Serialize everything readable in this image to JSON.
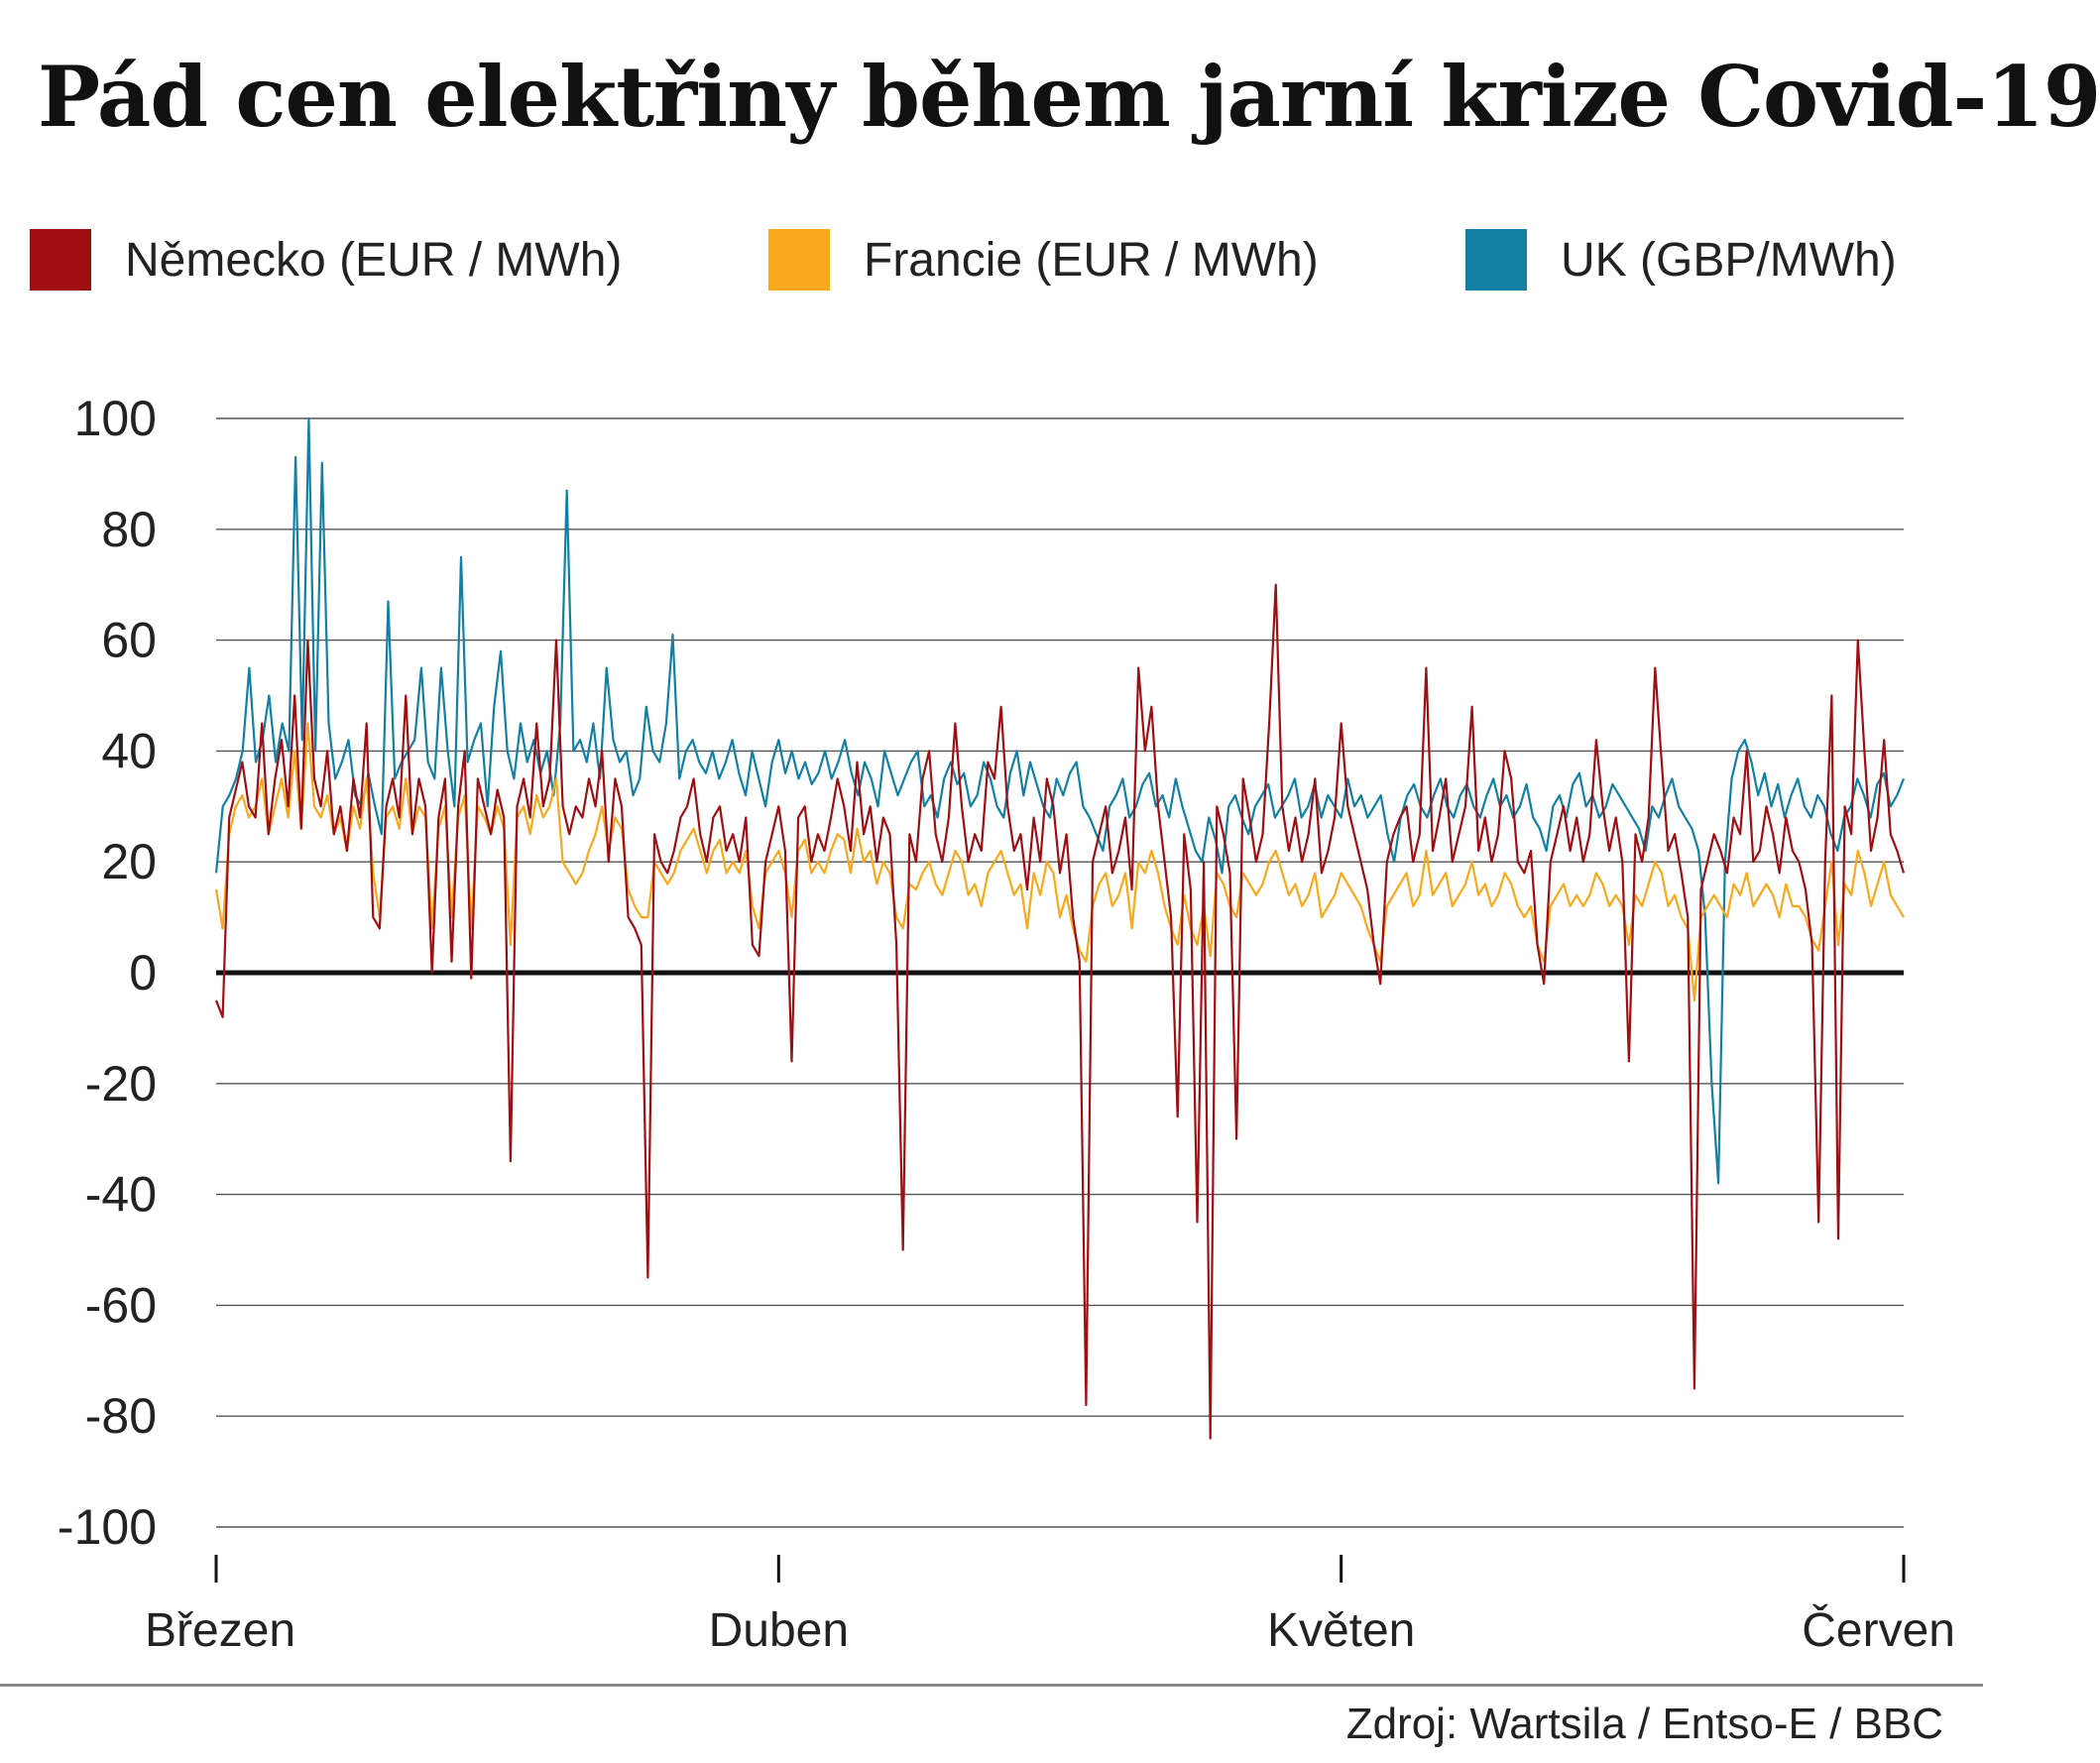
{
  "title": "Pád cen elektřiny během jarní krize Covid-19",
  "legend": [
    {
      "label": "Německo (EUR / MWh)",
      "color": "#A00E12"
    },
    {
      "label": "Francie (EUR / MWh)",
      "color": "#F9A81B"
    },
    {
      "label": "UK (GBP/MWh)",
      "color": "#1280A5"
    }
  ],
  "source": "Zdroj: Wartsila / Entso-E / BBC",
  "chart_data": {
    "type": "line",
    "ylim": [
      -100,
      100
    ],
    "yticks": [
      "100",
      "80",
      "60",
      "40",
      "20",
      "0",
      "-20",
      "-40",
      "-60",
      "-80",
      "-100"
    ],
    "xticks": [
      "Březen",
      "Duben",
      "Květen",
      "Červen"
    ],
    "xlim": [
      "1.3.2020",
      "1.6.2020"
    ],
    "grid": true,
    "legend_position": "top",
    "series": [
      {
        "name": "Německo (EUR / MWh)",
        "color": "#A00E12",
        "values": [
          -5,
          -8,
          28,
          33,
          38,
          30,
          28,
          45,
          25,
          35,
          42,
          30,
          50,
          26,
          60,
          35,
          30,
          40,
          25,
          30,
          22,
          35,
          28,
          45,
          10,
          8,
          30,
          35,
          28,
          50,
          25,
          35,
          30,
          0,
          28,
          35,
          2,
          30,
          40,
          -1,
          35,
          30,
          25,
          33,
          28,
          -34,
          30,
          35,
          28,
          45,
          30,
          35,
          60,
          30,
          25,
          30,
          28,
          35,
          30,
          40,
          20,
          35,
          30,
          10,
          8,
          5,
          -55,
          25,
          20,
          18,
          22,
          28,
          30,
          35,
          25,
          20,
          28,
          30,
          22,
          25,
          20,
          28,
          5,
          3,
          20,
          25,
          30,
          22,
          -16,
          28,
          30,
          20,
          25,
          22,
          28,
          35,
          30,
          22,
          38,
          25,
          30,
          20,
          28,
          25,
          5,
          -50,
          25,
          20,
          35,
          40,
          25,
          20,
          28,
          45,
          30,
          20,
          25,
          22,
          38,
          35,
          48,
          30,
          22,
          25,
          15,
          28,
          20,
          35,
          30,
          18,
          25,
          10,
          2,
          -78,
          20,
          25,
          30,
          18,
          22,
          28,
          15,
          55,
          40,
          48,
          30,
          20,
          10,
          -26,
          25,
          15,
          -45,
          20,
          -84,
          30,
          25,
          18,
          -30,
          35,
          28,
          20,
          25,
          45,
          70,
          30,
          22,
          28,
          20,
          25,
          35,
          18,
          22,
          28,
          45,
          30,
          25,
          20,
          15,
          5,
          -2,
          20,
          25,
          28,
          30,
          20,
          25,
          55,
          22,
          28,
          35,
          20,
          25,
          30,
          48,
          22,
          28,
          20,
          25,
          40,
          35,
          20,
          18,
          22,
          5,
          -2,
          20,
          25,
          30,
          22,
          28,
          20,
          25,
          42,
          30,
          22,
          28,
          20,
          -16,
          25,
          20,
          28,
          55,
          38,
          22,
          25,
          18,
          10,
          -75,
          15,
          20,
          25,
          22,
          18,
          28,
          25,
          40,
          20,
          22,
          30,
          25,
          18,
          28,
          22,
          20,
          15,
          5,
          -45,
          20,
          50,
          -48,
          30,
          25,
          60,
          40,
          22,
          28,
          42,
          25,
          22,
          18
        ]
      },
      {
        "name": "Francie (EUR / MWh)",
        "color": "#F9A81B",
        "values": [
          15,
          8,
          25,
          30,
          32,
          28,
          30,
          35,
          25,
          30,
          35,
          28,
          40,
          26,
          45,
          30,
          28,
          32,
          25,
          28,
          22,
          30,
          26,
          35,
          18,
          10,
          28,
          30,
          26,
          35,
          25,
          30,
          28,
          8,
          26,
          30,
          10,
          28,
          32,
          8,
          30,
          28,
          25,
          30,
          26,
          5,
          28,
          30,
          25,
          32,
          28,
          30,
          35,
          20,
          18,
          16,
          18,
          22,
          25,
          30,
          22,
          28,
          26,
          15,
          12,
          10,
          10,
          20,
          18,
          16,
          18,
          22,
          24,
          26,
          22,
          18,
          22,
          24,
          18,
          20,
          18,
          22,
          12,
          8,
          18,
          20,
          22,
          18,
          10,
          22,
          24,
          18,
          20,
          18,
          22,
          25,
          24,
          18,
          26,
          20,
          22,
          16,
          20,
          18,
          10,
          8,
          16,
          15,
          18,
          20,
          16,
          14,
          18,
          22,
          20,
          14,
          16,
          12,
          18,
          20,
          22,
          18,
          14,
          16,
          8,
          18,
          14,
          20,
          18,
          10,
          14,
          8,
          4,
          2,
          12,
          16,
          18,
          12,
          14,
          18,
          8,
          20,
          18,
          22,
          18,
          12,
          8,
          5,
          14,
          8,
          5,
          12,
          3,
          18,
          16,
          12,
          10,
          18,
          16,
          14,
          16,
          20,
          22,
          18,
          14,
          16,
          12,
          14,
          18,
          10,
          12,
          14,
          18,
          16,
          14,
          12,
          8,
          5,
          2,
          12,
          14,
          16,
          18,
          12,
          14,
          22,
          14,
          16,
          18,
          12,
          14,
          16,
          20,
          14,
          16,
          12,
          14,
          18,
          16,
          12,
          10,
          12,
          5,
          2,
          12,
          14,
          16,
          12,
          14,
          12,
          14,
          18,
          16,
          12,
          14,
          12,
          5,
          14,
          12,
          16,
          20,
          18,
          12,
          14,
          10,
          8,
          -5,
          10,
          12,
          14,
          12,
          10,
          16,
          14,
          18,
          12,
          14,
          16,
          14,
          10,
          16,
          12,
          12,
          10,
          6,
          4,
          12,
          20,
          5,
          16,
          14,
          22,
          18,
          12,
          16,
          20,
          14,
          12,
          10
        ]
      },
      {
        "name": "UK (GBP/MWh)",
        "color": "#1280A5",
        "values": [
          18,
          30,
          32,
          35,
          40,
          55,
          38,
          42,
          50,
          38,
          45,
          40,
          93,
          42,
          100,
          40,
          92,
          45,
          35,
          38,
          42,
          32,
          30,
          36,
          30,
          25,
          67,
          35,
          38,
          40,
          42,
          55,
          38,
          35,
          55,
          40,
          30,
          75,
          38,
          42,
          45,
          30,
          48,
          58,
          40,
          35,
          45,
          38,
          42,
          36,
          40,
          32,
          45,
          87,
          40,
          42,
          38,
          45,
          35,
          55,
          42,
          38,
          40,
          32,
          35,
          48,
          40,
          38,
          45,
          61,
          35,
          40,
          42,
          38,
          36,
          40,
          35,
          38,
          42,
          36,
          32,
          40,
          35,
          30,
          38,
          42,
          36,
          40,
          35,
          38,
          34,
          36,
          40,
          35,
          38,
          42,
          36,
          32,
          38,
          35,
          30,
          40,
          36,
          32,
          35,
          38,
          40,
          30,
          32,
          28,
          35,
          38,
          34,
          36,
          30,
          32,
          38,
          35,
          30,
          28,
          36,
          40,
          32,
          38,
          34,
          30,
          28,
          35,
          32,
          36,
          38,
          30,
          28,
          25,
          22,
          30,
          32,
          35,
          28,
          30,
          34,
          36,
          30,
          32,
          28,
          35,
          30,
          26,
          22,
          20,
          28,
          24,
          18,
          30,
          32,
          28,
          25,
          30,
          32,
          34,
          28,
          30,
          32,
          35,
          28,
          30,
          34,
          28,
          32,
          30,
          28,
          35,
          30,
          32,
          28,
          30,
          32,
          25,
          20,
          28,
          32,
          34,
          30,
          28,
          32,
          35,
          30,
          28,
          32,
          34,
          30,
          28,
          32,
          35,
          30,
          32,
          28,
          30,
          34,
          28,
          26,
          22,
          30,
          32,
          28,
          34,
          36,
          30,
          32,
          28,
          30,
          34,
          32,
          30,
          28,
          26,
          22,
          30,
          28,
          32,
          35,
          30,
          28,
          26,
          22,
          10,
          -20,
          -38,
          20,
          35,
          40,
          42,
          38,
          32,
          36,
          30,
          34,
          28,
          32,
          35,
          30,
          28,
          32,
          30,
          25,
          22,
          28,
          30,
          35,
          32,
          28,
          34,
          36,
          30,
          32,
          35
        ]
      }
    ]
  }
}
